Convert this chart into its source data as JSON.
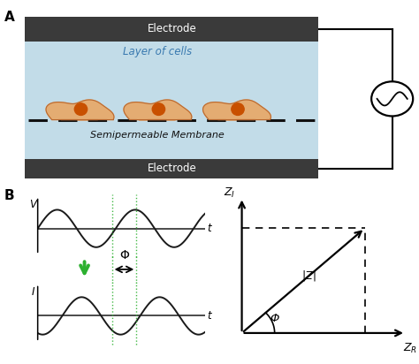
{
  "bg_color": "#ffffff",
  "panel_A_label": "A",
  "panel_B_label": "B",
  "electrode_color": "#3a3a3a",
  "electrode_text": "Electrode",
  "cell_layer_bg": "#c2dce8",
  "cell_body_color": "#e8a868",
  "cell_nucleus_color": "#c85000",
  "membrane_dash_color": "#111111",
  "layer_of_cells_text": "Layer of cells",
  "semiperm_text": "Semipermeable Membrane",
  "zi_label": "Z_I",
  "zr_label": "Z_R",
  "z_mag_label": "|Z|",
  "phi_label": "Φ",
  "voltage_label": "V",
  "current_label": "I",
  "time_label": "t",
  "green_arrow_color": "#2db030",
  "wave_color": "#1a1a1a",
  "axis_color": "#1a1a1a",
  "dashed_green": "#2db030",
  "dashed_black": "#111111"
}
